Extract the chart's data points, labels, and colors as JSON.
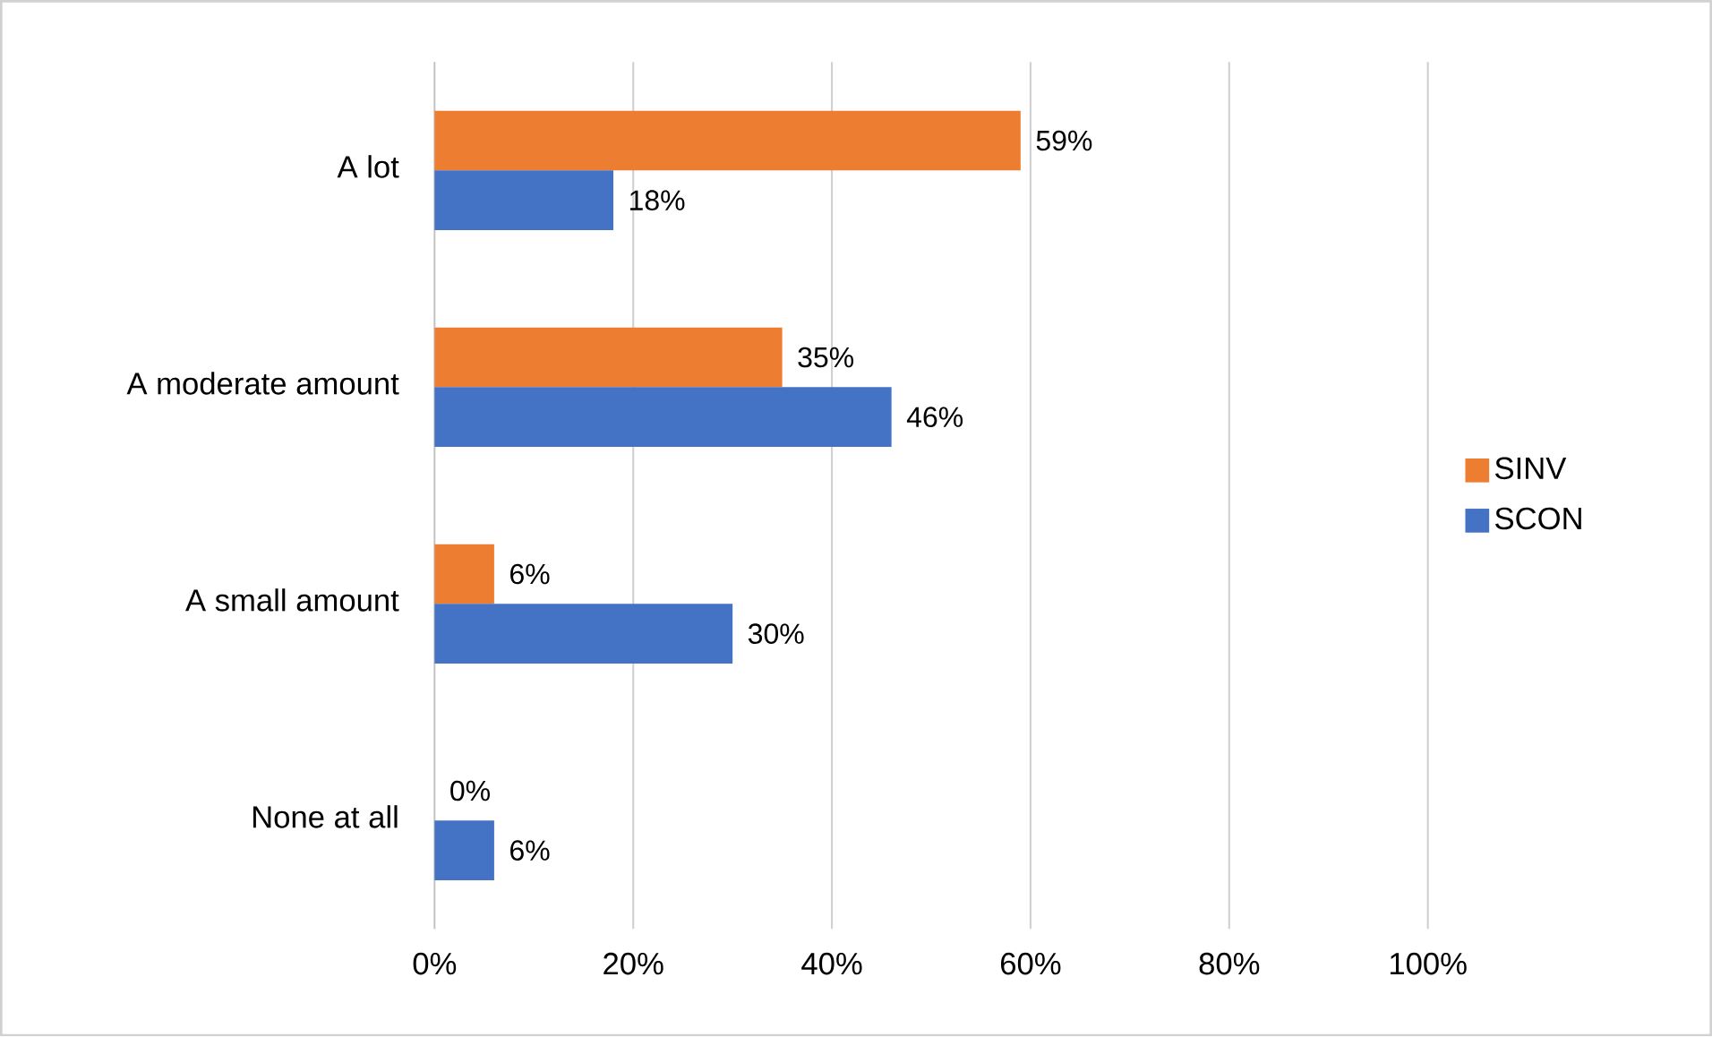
{
  "chart_data": {
    "type": "bar",
    "orientation": "horizontal",
    "categories": [
      "A lot",
      "A moderate amount",
      "A small amount",
      "None at all"
    ],
    "series": [
      {
        "name": "SINV",
        "color": "#ed7d31",
        "values": [
          59,
          35,
          6,
          0
        ],
        "value_labels": [
          "59%",
          "35%",
          "6%",
          "0%"
        ]
      },
      {
        "name": "SCON",
        "color": "#4472c4",
        "values": [
          18,
          46,
          30,
          6
        ],
        "value_labels": [
          "18%",
          "46%",
          "30%",
          "6%"
        ]
      }
    ],
    "xlim": [
      0,
      100
    ],
    "xticks": [
      {
        "value": 0,
        "label": "0%"
      },
      {
        "value": 20,
        "label": "20%"
      },
      {
        "value": 40,
        "label": "40%"
      },
      {
        "value": 60,
        "label": "60%"
      },
      {
        "value": 80,
        "label": "80%"
      },
      {
        "value": 100,
        "label": "100%"
      }
    ],
    "grid": "x",
    "legend": "right"
  }
}
